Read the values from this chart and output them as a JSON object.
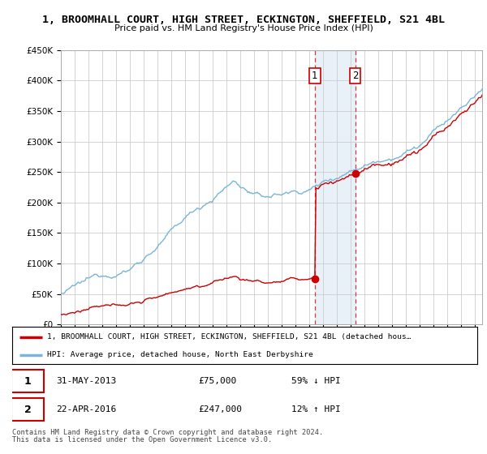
{
  "title_line1": "1, BROOMHALL COURT, HIGH STREET, ECKINGTON, SHEFFIELD, S21 4BL",
  "title_line2": "Price paid vs. HM Land Registry's House Price Index (HPI)",
  "hpi_color": "#7ab4d8",
  "price_color": "#cc0000",
  "sale1_year": 2013.42,
  "sale1_price": 75000,
  "sale2_year": 2016.33,
  "sale2_price": 247000,
  "sale1_display": "31-MAY-2013",
  "sale2_display": "22-APR-2016",
  "sale1_hpi_pct": "59% ↓ HPI",
  "sale2_hpi_pct": "12% ↑ HPI",
  "legend_line1": "1, BROOMHALL COURT, HIGH STREET, ECKINGTON, SHEFFIELD, S21 4BL (detached hous…",
  "legend_line2": "HPI: Average price, detached house, North East Derbyshire",
  "footer1": "Contains HM Land Registry data © Crown copyright and database right 2024.",
  "footer2": "This data is licensed under the Open Government Licence v3.0.",
  "ylim_max": 450000,
  "xmin": 1995,
  "xmax": 2025.5,
  "background": "#ffffff",
  "grid_color": "#cccccc"
}
